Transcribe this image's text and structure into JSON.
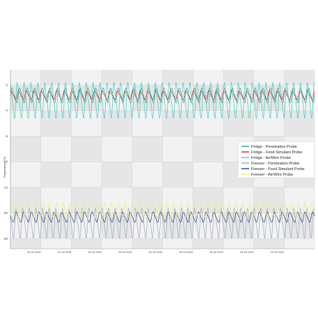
{
  "chart_data": {
    "type": "line",
    "ylabel": "Temperature (°C)",
    "xlabel": "",
    "ylim": [
      -27,
      8
    ],
    "y_ticks": [
      5,
      0,
      -5,
      -10,
      -15,
      -20,
      -25
    ],
    "x_tick_labels": [
      "18 Jul 2016",
      "18 Jul 2016",
      "18 Jul 2016",
      "18 Jul 2016",
      "18 Jul 2016",
      "18 Jul 2016",
      "18 Jul 2016",
      "18 Jul 2016",
      "18 Jul 2016"
    ],
    "grid": true,
    "legend_position": "right",
    "series": [
      {
        "name": "Fridge - Penetration Probe",
        "color": "#1aa68a",
        "mean": 3.0,
        "amplitude": 1.6,
        "cycles": 40
      },
      {
        "name": "Fridge - Food Simulant Probe",
        "color": "#d22020",
        "mean": 3.0,
        "amplitude": 1.0,
        "cycles": 40
      },
      {
        "name": "Fridge - Air/Wire Probe",
        "color": "#3dc8c0",
        "mean": 2.0,
        "amplitude": 3.8,
        "cycles": 44
      },
      {
        "name": "Freezer - Penetration Probe",
        "color": "#9aa8c2",
        "mean": -22.0,
        "amplitude": 3.2,
        "cycles": 46
      },
      {
        "name": "Freezer - Food Simulant Probe",
        "color": "#1f3d9a",
        "mean": -20.8,
        "amplitude": 1.1,
        "cycles": 40
      },
      {
        "name": "Freezer - Air/Wire Probe",
        "color": "#e6ef7a",
        "mean": -19.6,
        "amplitude": 1.8,
        "cycles": 44
      }
    ]
  }
}
